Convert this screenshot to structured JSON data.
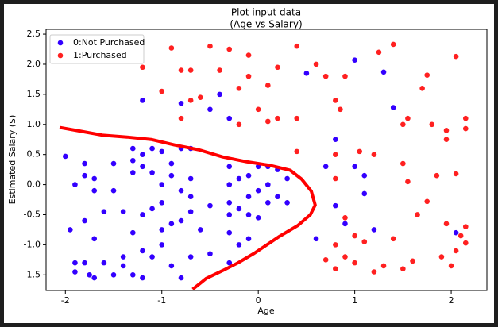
{
  "chart_data": {
    "type": "scatter",
    "title": "Plot input data",
    "subtitle": "(Age vs Salary)",
    "x_label": "Age",
    "y_label": "Estimated Salary ($)",
    "xlim": [
      -2.2,
      2.37
    ],
    "ylim": [
      -1.76,
      2.58
    ],
    "xticks": [
      -2,
      -1,
      0,
      1,
      2
    ],
    "yticks": [
      -1.5,
      {
        "value": -1,
        "label": "-1.0"
      },
      -0.5,
      {
        "value": 0,
        "label": "0.0"
      },
      0.5,
      {
        "value": 1,
        "label": "1.0"
      },
      1.5,
      {
        "value": 2,
        "label": "2.0"
      },
      2.5
    ],
    "legend": "upper left",
    "series": [
      {
        "name": "0:Not Purchased",
        "color": "#3300ff",
        "x": [
          -2.0,
          -1.95,
          -1.9,
          -1.9,
          -1.9,
          -1.8,
          -1.8,
          -1.8,
          -1.8,
          -1.75,
          -1.7,
          -1.7,
          -1.7,
          -1.7,
          -1.6,
          -1.6,
          -1.5,
          -1.5,
          -1.5,
          -1.4,
          -1.4,
          -1.4,
          -1.3,
          -1.3,
          -1.3,
          -1.3,
          -1.3,
          -1.2,
          -1.2,
          -1.2,
          -1.2,
          -1.2,
          -1.2,
          -1.1,
          -1.1,
          -1.1,
          -1.1,
          -1.0,
          -1.0,
          -1.0,
          -1.0,
          -1.0,
          -0.9,
          -0.9,
          -0.9,
          -0.9,
          -0.8,
          -0.8,
          -0.8,
          -0.8,
          -0.8,
          -0.7,
          -0.7,
          -0.7,
          -0.7,
          -0.7,
          -0.6,
          -0.5,
          -0.5,
          -0.5,
          -0.4,
          -0.3,
          -0.3,
          -0.3,
          -0.3,
          -0.3,
          -0.3,
          -0.3,
          -0.2,
          -0.2,
          -0.2,
          -0.1,
          -0.1,
          -0.1,
          -0.1,
          0.0,
          0.0,
          0.0,
          0.1,
          0.1,
          0.1,
          0.2,
          0.2,
          0.3,
          0.3,
          0.5,
          0.6,
          0.7,
          0.8,
          0.8,
          0.9,
          1.0,
          1.0,
          1.1,
          1.1,
          1.2,
          1.3,
          1.4,
          2.05
        ],
        "y": [
          0.47,
          -0.75,
          0.0,
          -1.3,
          -1.45,
          0.35,
          0.15,
          -0.6,
          -1.3,
          -1.5,
          0.1,
          -0.1,
          -0.9,
          -1.55,
          -0.45,
          -1.3,
          0.35,
          -0.1,
          -1.5,
          -0.45,
          -1.2,
          -1.35,
          0.6,
          0.4,
          0.2,
          -0.8,
          -1.5,
          1.4,
          0.5,
          0.3,
          -0.5,
          -1.1,
          -1.55,
          0.6,
          0.2,
          -0.4,
          -1.2,
          0.55,
          0.0,
          -0.3,
          -0.75,
          -1.0,
          0.35,
          0.15,
          -0.65,
          -1.35,
          1.35,
          0.6,
          -0.1,
          -0.6,
          -1.55,
          0.6,
          0.1,
          -0.2,
          -0.45,
          -1.2,
          -0.75,
          1.25,
          -0.35,
          -1.15,
          1.5,
          1.1,
          0.3,
          0.0,
          -0.3,
          -0.5,
          -0.8,
          -1.3,
          0.1,
          -0.4,
          -1.0,
          0.15,
          -0.2,
          -0.5,
          -0.9,
          0.3,
          -0.1,
          -0.55,
          0.3,
          0.0,
          -0.3,
          -0.2,
          0.25,
          0.1,
          -0.3,
          1.85,
          -0.9,
          0.3,
          0.75,
          -0.35,
          -0.65,
          2.07,
          0.3,
          0.15,
          -0.15,
          -0.75,
          1.87,
          1.28,
          -0.8
        ]
      },
      {
        "name": "1:Purchased",
        "color": "#ff2020",
        "x": [
          -1.2,
          -1.0,
          -0.9,
          -0.8,
          -0.8,
          -0.7,
          -0.7,
          -0.6,
          -0.5,
          -0.4,
          -0.3,
          -0.2,
          -0.2,
          -0.1,
          -0.1,
          0.0,
          0.1,
          0.1,
          0.2,
          0.2,
          0.4,
          0.4,
          0.4,
          0.6,
          0.7,
          0.8,
          0.85,
          0.9,
          0.8,
          0.8,
          0.7,
          0.8,
          0.8,
          0.9,
          0.9,
          1.0,
          1.0,
          1.05,
          1.1,
          1.2,
          1.2,
          1.25,
          1.3,
          1.4,
          1.4,
          1.5,
          1.5,
          1.5,
          1.55,
          1.55,
          1.6,
          1.65,
          1.7,
          1.75,
          1.75,
          1.8,
          1.85,
          1.9,
          1.95,
          1.95,
          1.95,
          2.0,
          2.05,
          2.05,
          2.05,
          2.15,
          2.15,
          2.15,
          2.15,
          2.1
        ],
        "y": [
          1.95,
          1.55,
          2.27,
          1.9,
          1.1,
          1.9,
          1.4,
          1.45,
          2.3,
          1.9,
          2.25,
          1.6,
          1.0,
          2.15,
          1.8,
          1.25,
          1.65,
          1.05,
          1.1,
          1.95,
          2.3,
          1.1,
          0.55,
          2.0,
          1.8,
          1.4,
          1.25,
          1.8,
          0.5,
          0.1,
          -1.25,
          -1.0,
          -1.4,
          -0.55,
          -1.2,
          -0.85,
          -1.3,
          0.55,
          -0.95,
          -1.45,
          0.5,
          2.2,
          -1.35,
          2.33,
          -0.9,
          1.0,
          0.35,
          -1.4,
          1.1,
          0.05,
          -1.27,
          -0.5,
          1.6,
          1.82,
          -0.28,
          1.0,
          0.15,
          -1.2,
          0.9,
          0.75,
          -0.65,
          -1.35,
          2.13,
          0.18,
          -1.1,
          1.1,
          0.93,
          -0.7,
          -0.97,
          -0.85
        ]
      }
    ],
    "boundary": {
      "color": "#ff0000",
      "x": [
        -2.06,
        -1.85,
        -1.61,
        -1.36,
        -1.11,
        -0.87,
        -0.62,
        -0.37,
        -0.12,
        0.12,
        0.33,
        0.45,
        0.55,
        0.59,
        0.54,
        0.41,
        0.21,
        -0.04,
        -0.21,
        -0.37,
        -0.54,
        -0.68
      ],
      "y": [
        0.95,
        0.89,
        0.82,
        0.79,
        0.75,
        0.66,
        0.58,
        0.46,
        0.38,
        0.32,
        0.24,
        0.09,
        -0.11,
        -0.34,
        -0.5,
        -0.68,
        -0.87,
        -1.14,
        -1.3,
        -1.43,
        -1.56,
        -1.74
      ]
    }
  }
}
